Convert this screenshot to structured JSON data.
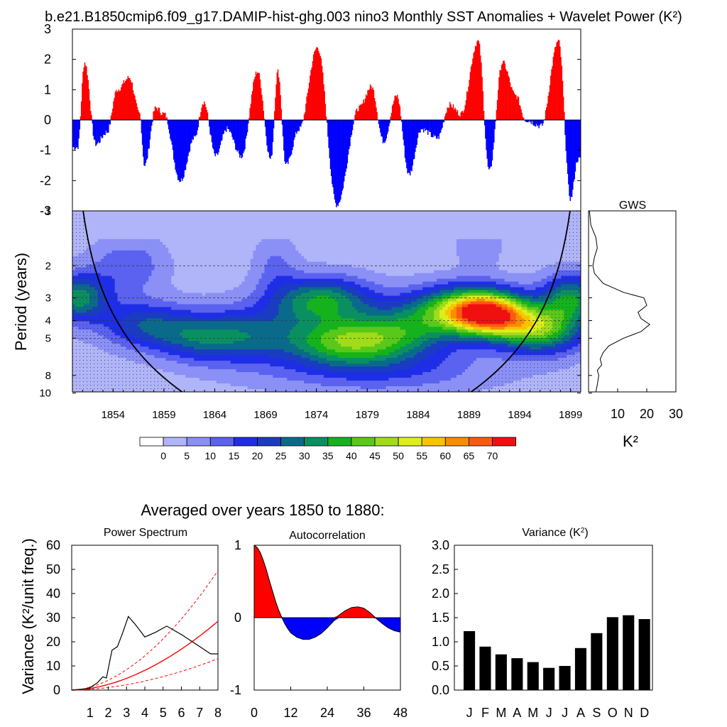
{
  "title": "b.e21.B1850cmip6.f09_g17.DAMIP-hist-ghg.003 nino3 Monthly SST Anomalies + Wavelet Power (K²)",
  "colors": {
    "positive": "#ff0000",
    "negative": "#0000ff",
    "curve": "#000000",
    "sig": "#ff0000"
  },
  "chart_data": [
    {
      "type": "area",
      "name": "anomaly",
      "title": "b.e21.B1850cmip6.f09_g17.DAMIP-hist-ghg.003 nino3 Monthly SST Anomalies + Wavelet Power (K²)",
      "ylim": [
        -3,
        3
      ],
      "yticks": [
        3,
        2,
        1,
        0,
        -1,
        -2,
        -3
      ],
      "xlim": [
        1850,
        1900
      ],
      "events": [
        [
          1850.5,
          -0.9
        ],
        [
          1851.2,
          1.9
        ],
        [
          1852.3,
          -0.8
        ],
        [
          1853.4,
          -0.4
        ],
        [
          1854.4,
          1.0
        ],
        [
          1855.6,
          1.4
        ],
        [
          1856.6,
          0.2
        ],
        [
          1857.1,
          -1.5
        ],
        [
          1858.2,
          0.4
        ],
        [
          1859.0,
          0.2
        ],
        [
          1860.6,
          -2.0
        ],
        [
          1862.0,
          -0.6
        ],
        [
          1862.9,
          0.6
        ],
        [
          1864.1,
          -1.2
        ],
        [
          1865.2,
          -0.3
        ],
        [
          1866.6,
          -1.2
        ],
        [
          1868.2,
          1.6
        ],
        [
          1869.5,
          -1.3
        ],
        [
          1870.2,
          1.6
        ],
        [
          1871.0,
          -1.5
        ],
        [
          1872.3,
          -0.3
        ],
        [
          1874.1,
          2.4
        ],
        [
          1876.0,
          -2.8
        ],
        [
          1878.2,
          0.4
        ],
        [
          1879.4,
          1.1
        ],
        [
          1880.6,
          -0.7
        ],
        [
          1881.9,
          0.8
        ],
        [
          1883.1,
          -1.8
        ],
        [
          1884.3,
          -0.3
        ],
        [
          1885.9,
          -0.6
        ],
        [
          1887.1,
          0.5
        ],
        [
          1888.2,
          0.2
        ],
        [
          1889.9,
          2.6
        ],
        [
          1891.0,
          -1.7
        ],
        [
          1892.3,
          1.9
        ],
        [
          1893.6,
          0.8
        ],
        [
          1894.6,
          0.0
        ],
        [
          1896.1,
          -0.2
        ],
        [
          1897.8,
          2.6
        ],
        [
          1899.0,
          -2.6
        ],
        [
          1899.7,
          -1.3
        ]
      ],
      "noise": 0.1,
      "seed": 7
    },
    {
      "type": "heatmap",
      "name": "wavelet-power",
      "ylabel": "Period (years)",
      "xticks": [
        1854,
        1859,
        1864,
        1869,
        1874,
        1879,
        1884,
        1889,
        1894,
        1899
      ],
      "yticks": [
        1,
        2,
        3,
        4,
        5,
        8,
        10
      ],
      "xlim": [
        1850,
        1900
      ],
      "ylim_log2": [
        0,
        3.3
      ],
      "colorbar": {
        "labels": [
          "0",
          "5",
          "10",
          "15",
          "20",
          "25",
          "30",
          "35",
          "40",
          "45",
          "50",
          "55",
          "60",
          "65",
          "70"
        ],
        "colors": [
          "#ffffff",
          "#b0b4f8",
          "#8a90f6",
          "#5a62ef",
          "#1e2ee6",
          "#1a3cc0",
          "#0a6a8a",
          "#0a9060",
          "#16b21e",
          "#5ac81a",
          "#a0dc1a",
          "#dcef1c",
          "#f8c400",
          "#f98c00",
          "#f85a10",
          "#f01010"
        ],
        "note": "16 fill classes; labels sit between boxes"
      },
      "blobs": [
        {
          "x": 1850.5,
          "p": 3.0,
          "sx": 2.2,
          "sl": 0.3,
          "a": 30
        },
        {
          "x": 1857.0,
          "p": 4.2,
          "sx": 3.0,
          "sl": 0.3,
          "a": 20
        },
        {
          "x": 1855.5,
          "p": 2.0,
          "sx": 2.5,
          "sl": 0.35,
          "a": 12
        },
        {
          "x": 1862.0,
          "p": 5.0,
          "sx": 3.0,
          "sl": 0.3,
          "a": 15
        },
        {
          "x": 1867.0,
          "p": 4.8,
          "sx": 4.0,
          "sl": 0.35,
          "a": 22
        },
        {
          "x": 1874.5,
          "p": 3.1,
          "sx": 3.5,
          "sl": 0.3,
          "a": 32
        },
        {
          "x": 1877.0,
          "p": 5.2,
          "sx": 4.0,
          "sl": 0.3,
          "a": 36
        },
        {
          "x": 1883.0,
          "p": 4.5,
          "sx": 3.5,
          "sl": 0.35,
          "a": 22
        },
        {
          "x": 1888.0,
          "p": 3.4,
          "sx": 3.5,
          "sl": 0.3,
          "a": 30
        },
        {
          "x": 1891.0,
          "p": 3.7,
          "sx": 2.8,
          "sl": 0.28,
          "a": 55
        },
        {
          "x": 1896.0,
          "p": 4.5,
          "sx": 3.0,
          "sl": 0.3,
          "a": 38
        },
        {
          "x": 1899.0,
          "p": 3.0,
          "sx": 2.0,
          "sl": 0.3,
          "a": 30
        },
        {
          "x": 1870.0,
          "p": 2.0,
          "sx": 1.5,
          "sl": 0.4,
          "a": 8
        },
        {
          "x": 1890.0,
          "p": 1.5,
          "sx": 1.5,
          "sl": 0.3,
          "a": 8
        },
        {
          "x": 1880.0,
          "p": 7.5,
          "sx": 8.0,
          "sl": 0.3,
          "a": 12
        }
      ]
    },
    {
      "type": "line",
      "name": "global-wavelet-spectrum",
      "title": "GWS",
      "xlabel": "K²",
      "xticks": [
        10,
        20,
        30
      ],
      "xlim": [
        0,
        30
      ],
      "period": [
        0.5,
        1.0,
        1.2,
        1.4,
        1.6,
        1.8,
        2.0,
        2.2,
        2.5,
        2.8,
        3.0,
        3.3,
        3.6,
        3.9,
        4.2,
        4.6,
        5.0,
        5.5,
        6.0,
        6.5,
        7.0,
        7.5,
        8.0,
        9.0,
        10.0
      ],
      "power": [
        0.3,
        0.3,
        0.8,
        2.5,
        3.0,
        2.0,
        1.5,
        2.0,
        5.0,
        12.0,
        19.0,
        20.0,
        17.0,
        18.0,
        21.0,
        18.0,
        12.0,
        7.0,
        5.0,
        4.0,
        4.5,
        3.0,
        3.5,
        3.0,
        2.5
      ]
    },
    {
      "type": "line",
      "name": "power-spectrum",
      "title": "Power Spectrum",
      "ylabel": "Variance (K²/unit freq.)",
      "xlim": [
        0,
        8
      ],
      "ylim": [
        0,
        60
      ],
      "yticks": [
        0,
        10,
        20,
        30,
        40,
        50,
        60
      ],
      "xticks": [
        1,
        2,
        3,
        4,
        5,
        6,
        7,
        8
      ],
      "period": [
        0.0,
        0.7,
        1.0,
        1.4,
        1.7,
        1.9,
        2.2,
        2.5,
        2.8,
        3.1,
        3.5,
        4.0,
        4.6,
        5.2,
        6.0,
        7.0,
        7.6,
        8.0
      ],
      "power": [
        0.0,
        0.5,
        1.0,
        3.0,
        5.5,
        5.0,
        16.5,
        18.0,
        24.0,
        30.5,
        27.0,
        22.0,
        24.0,
        26.5,
        23.0,
        18.0,
        15.0,
        15.0
      ],
      "red_noise_ref_at_8": 28.5,
      "lower_bound_at_8": 13.0,
      "upper_bound_at_8": 49.5
    },
    {
      "type": "area",
      "name": "autocorrelation",
      "title": "Autocorrelation",
      "xlim": [
        0,
        48
      ],
      "ylim": [
        -1,
        1
      ],
      "xticks": [
        0,
        12,
        24,
        36,
        48
      ],
      "yticks": [
        1,
        0,
        -1
      ],
      "lag": [
        0,
        1,
        2,
        3,
        4,
        5,
        6,
        7,
        8,
        9,
        10,
        11,
        12,
        14,
        16,
        18,
        20,
        22,
        24,
        26,
        28,
        30,
        32,
        34,
        36,
        38,
        40,
        42,
        44,
        46,
        48
      ],
      "r": [
        1.0,
        0.97,
        0.9,
        0.79,
        0.66,
        0.51,
        0.37,
        0.23,
        0.11,
        0.01,
        -0.08,
        -0.15,
        -0.21,
        -0.27,
        -0.3,
        -0.3,
        -0.27,
        -0.22,
        -0.14,
        -0.05,
        0.04,
        0.1,
        0.14,
        0.15,
        0.13,
        0.07,
        -0.01,
        -0.08,
        -0.14,
        -0.18,
        -0.2
      ]
    },
    {
      "type": "bar",
      "name": "monthly-variance",
      "title": "Variance (K²)",
      "categories": [
        "J",
        "F",
        "M",
        "A",
        "M",
        "J",
        "J",
        "A",
        "S",
        "O",
        "N",
        "D"
      ],
      "values": [
        1.22,
        0.9,
        0.74,
        0.66,
        0.58,
        0.46,
        0.5,
        0.87,
        1.18,
        1.51,
        1.55,
        1.47
      ],
      "ylim": [
        0,
        3.0
      ],
      "yticks": [
        "0.0",
        "0.5",
        "1.0",
        "1.5",
        "2.0",
        "2.5",
        "3.0"
      ]
    }
  ],
  "subtitle": "Averaged over years 1850 to 1880:"
}
